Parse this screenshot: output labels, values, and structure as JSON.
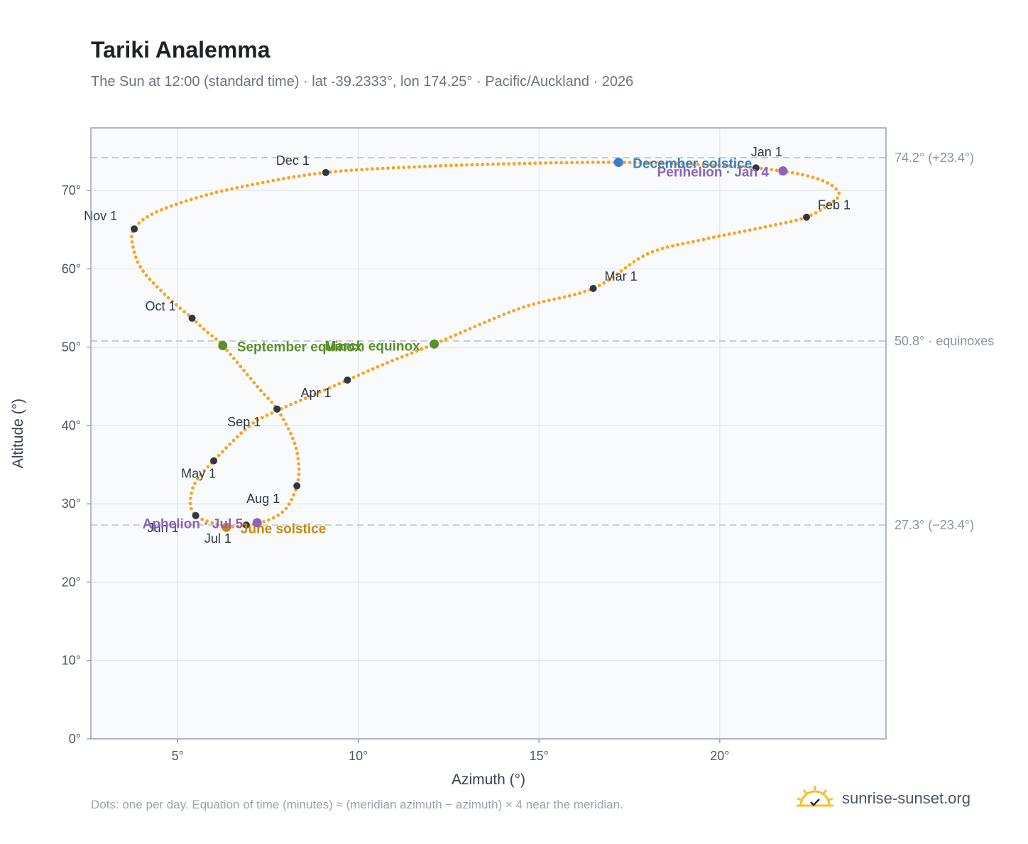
{
  "title": "Tariki Analemma",
  "subtitle": "The Sun at 12:00 (standard time) · lat -39.2333°, lon 174.25° · Pacific/Auckland · 2026",
  "footnote": "Dots: one per day. Equation of time (minutes) ≈ (meridian azimuth − azimuth) × 4 near the meridian.",
  "brand": {
    "text": "sunrise-sunset.org",
    "icon": "sun-logo-icon"
  },
  "colors": {
    "curve": "#f5a623",
    "month_marker": "#2d3748",
    "december_solstice": "#3b7dc4",
    "june_solstice": "#c88a12",
    "equinox": "#5a8f29",
    "apsis": "#8e62b8",
    "reference_line": "#b8c4d0",
    "plot_bg": "#f8fafc",
    "grid": "#e5e9ef",
    "frame": "#94a3b8"
  },
  "chart_data": {
    "type": "scatter",
    "xlabel": "Azimuth (°)",
    "ylabel": "Altitude (°)",
    "xlim": [
      2.6,
      24.6
    ],
    "ylim": [
      0,
      78
    ],
    "xticks": [
      {
        "value": 5,
        "label": "5°"
      },
      {
        "value": 10,
        "label": "10°"
      },
      {
        "value": 15,
        "label": "15°"
      },
      {
        "value": 20,
        "label": "20°"
      }
    ],
    "yticks": [
      {
        "value": 0,
        "label": "0°"
      },
      {
        "value": 10,
        "label": "10°"
      },
      {
        "value": 20,
        "label": "20°"
      },
      {
        "value": 30,
        "label": "30°"
      },
      {
        "value": 40,
        "label": "40°"
      },
      {
        "value": 50,
        "label": "50°"
      },
      {
        "value": 60,
        "label": "60°"
      },
      {
        "value": 70,
        "label": "70°"
      }
    ],
    "grid": true,
    "reference_lines": [
      {
        "y": 74.2,
        "label": "74.2° (+23.4°)"
      },
      {
        "y": 50.8,
        "label": "50.8° · equinoxes"
      },
      {
        "y": 27.3,
        "label": "27.3° (−23.4°)"
      }
    ],
    "month_markers": [
      {
        "label": "Jan 1",
        "x": 21.0,
        "y": 72.9
      },
      {
        "label": "Feb 1",
        "x": 22.4,
        "y": 66.6
      },
      {
        "label": "Mar 1",
        "x": 16.5,
        "y": 57.5
      },
      {
        "label": "Apr 1",
        "x": 9.7,
        "y": 45.8
      },
      {
        "label": "May 1",
        "x": 6.0,
        "y": 35.5
      },
      {
        "label": "Jun 1",
        "x": 5.5,
        "y": 28.5
      },
      {
        "label": "Jul 1",
        "x": 6.9,
        "y": 27.3
      },
      {
        "label": "Aug 1",
        "x": 8.3,
        "y": 32.3
      },
      {
        "label": "Sep 1",
        "x": 7.75,
        "y": 42.1
      },
      {
        "label": "Oct 1",
        "x": 5.4,
        "y": 53.7
      },
      {
        "label": "Nov 1",
        "x": 3.8,
        "y": 65.1
      },
      {
        "label": "Dec 1",
        "x": 9.1,
        "y": 72.3
      }
    ],
    "events": [
      {
        "label": "December solstice",
        "x": 17.2,
        "y": 73.6,
        "kind": "december_solstice"
      },
      {
        "label": "Perihelion · Jan 4",
        "x": 21.75,
        "y": 72.5,
        "kind": "apsis"
      },
      {
        "label": "March equinox",
        "x": 12.1,
        "y": 50.4,
        "kind": "equinox"
      },
      {
        "label": "September equinox",
        "x": 6.25,
        "y": 50.2,
        "kind": "equinox"
      },
      {
        "label": "June solstice",
        "x": 6.35,
        "y": 27.0,
        "kind": "june_solstice"
      },
      {
        "label": "Aphelion · Jul 5",
        "x": 7.2,
        "y": 27.6,
        "kind": "apsis"
      }
    ],
    "series": [
      {
        "points": [
          [
            21.0,
            72.9
          ],
          [
            21.78,
            72.45
          ],
          [
            22.4,
            71.9
          ],
          [
            22.88,
            71.2
          ],
          [
            23.2,
            70.3
          ],
          [
            23.3,
            69.4
          ],
          [
            23.1,
            68.5
          ],
          [
            22.4,
            66.6
          ],
          [
            21.2,
            65.3
          ],
          [
            19.5,
            63.7
          ],
          [
            18.0,
            61.9
          ],
          [
            16.5,
            57.5
          ],
          [
            14.5,
            55.0
          ],
          [
            12.1,
            50.4
          ],
          [
            10.8,
            48.0
          ],
          [
            9.7,
            45.8
          ],
          [
            8.6,
            43.6
          ],
          [
            7.8,
            42.0
          ],
          [
            7.0,
            40.0
          ],
          [
            6.0,
            35.5
          ],
          [
            5.5,
            32.8
          ],
          [
            5.35,
            30.2
          ],
          [
            5.5,
            28.5
          ],
          [
            5.95,
            27.6
          ],
          [
            6.45,
            27.1
          ],
          [
            6.9,
            27.3
          ],
          [
            7.5,
            27.9
          ],
          [
            8.0,
            29.4
          ],
          [
            8.3,
            32.3
          ],
          [
            8.35,
            35.0
          ],
          [
            8.2,
            38.2
          ],
          [
            7.75,
            42.1
          ],
          [
            7.2,
            45.0
          ],
          [
            6.25,
            50.2
          ],
          [
            5.8,
            52.0
          ],
          [
            5.4,
            53.7
          ],
          [
            4.7,
            56.5
          ],
          [
            4.0,
            60.0
          ],
          [
            3.75,
            63.2
          ],
          [
            3.8,
            65.1
          ],
          [
            4.3,
            67.0
          ],
          [
            5.4,
            68.9
          ],
          [
            6.8,
            70.5
          ],
          [
            9.1,
            72.3
          ],
          [
            12.0,
            73.1
          ],
          [
            15.0,
            73.5
          ],
          [
            17.2,
            73.6
          ],
          [
            19.0,
            73.4
          ],
          [
            20.5,
            73.1
          ],
          [
            21.0,
            72.9
          ]
        ]
      }
    ]
  }
}
